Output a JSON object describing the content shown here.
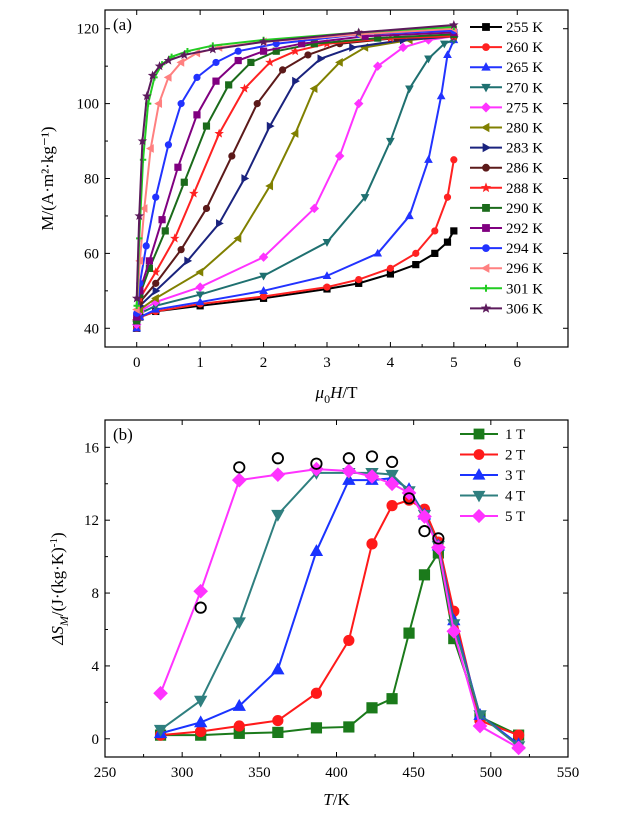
{
  "chart_data": [
    {
      "type": "line",
      "panel_label": "(a)",
      "xlabel": "μ0H/T",
      "xlabel_parts": {
        "pre": "μ",
        "sub": "0",
        "post": "H/T"
      },
      "ylabel": "M/(A·m²·kg⁻¹)",
      "xlim": [
        -0.5,
        6.8
      ],
      "ylim": [
        35,
        125
      ],
      "xticks": [
        0,
        1,
        2,
        3,
        4,
        5,
        6
      ],
      "yticks": [
        40,
        60,
        80,
        100,
        120
      ],
      "grid": false,
      "legend_position": "right",
      "series": [
        {
          "name": "255 K",
          "color": "#000000",
          "marker": "square",
          "x": [
            0,
            0.05,
            0.3,
            1,
            2,
            3,
            3.5,
            4,
            4.4,
            4.7,
            4.9,
            5.0
          ],
          "y": [
            40,
            43,
            44.5,
            46,
            48,
            50.5,
            52,
            54.5,
            57,
            60,
            63,
            66
          ]
        },
        {
          "name": "260 K",
          "color": "#ff2222",
          "marker": "circle",
          "x": [
            0,
            0.05,
            0.3,
            1,
            2,
            3,
            3.5,
            4,
            4.4,
            4.7,
            4.9,
            5.0
          ],
          "y": [
            40,
            43,
            44.5,
            46.5,
            48.5,
            51,
            53,
            56,
            60,
            66,
            75,
            85
          ]
        },
        {
          "name": "265 K",
          "color": "#2233ff",
          "marker": "triangle-up",
          "x": [
            0,
            0.05,
            0.3,
            1,
            2,
            3,
            3.8,
            4.3,
            4.6,
            4.8,
            4.9,
            5.0
          ],
          "y": [
            40,
            43,
            45,
            47,
            50,
            54,
            60,
            70,
            85,
            102,
            113,
            117
          ]
        },
        {
          "name": "270 K",
          "color": "#1f7070",
          "marker": "triangle-down",
          "x": [
            0,
            0.05,
            0.3,
            1,
            2,
            3,
            3.6,
            4,
            4.3,
            4.6,
            4.85,
            5.0
          ],
          "y": [
            41,
            44,
            46,
            49,
            54,
            63,
            75,
            90,
            104,
            112,
            116,
            117
          ]
        },
        {
          "name": "275 K",
          "color": "#ff33ff",
          "marker": "diamond",
          "x": [
            0,
            0.05,
            0.3,
            1,
            2,
            2.8,
            3.2,
            3.5,
            3.8,
            4.2,
            4.6,
            5.0
          ],
          "y": [
            41,
            44.5,
            47,
            51,
            59,
            72,
            86,
            100,
            110,
            115,
            117,
            118
          ]
        },
        {
          "name": "280 K",
          "color": "#808000",
          "marker": "triangle-left",
          "x": [
            0,
            0.05,
            0.3,
            1,
            1.6,
            2.1,
            2.5,
            2.8,
            3.2,
            3.6,
            4.3,
            5.0
          ],
          "y": [
            42,
            45,
            48,
            55,
            64,
            78,
            92,
            104,
            111,
            115,
            117,
            118
          ]
        },
        {
          "name": "283 K",
          "color": "#1a237e",
          "marker": "triangle-right",
          "x": [
            0,
            0.05,
            0.3,
            0.8,
            1.3,
            1.7,
            2.1,
            2.5,
            2.9,
            3.4,
            4.2,
            5.0
          ],
          "y": [
            42,
            46,
            50,
            58,
            68,
            80,
            94,
            106,
            112,
            115,
            117,
            118
          ]
        },
        {
          "name": "286 K",
          "color": "#5c1a1a",
          "marker": "hexagon",
          "x": [
            0,
            0.05,
            0.3,
            0.7,
            1.1,
            1.5,
            1.9,
            2.3,
            2.7,
            3.2,
            4.1,
            5.0
          ],
          "y": [
            42,
            47,
            52,
            61,
            72,
            86,
            100,
            109,
            113,
            116,
            117.5,
            118
          ]
        },
        {
          "name": "288 K",
          "color": "#ff2222",
          "marker": "star",
          "x": [
            0,
            0.05,
            0.3,
            0.6,
            0.9,
            1.3,
            1.7,
            2.1,
            2.5,
            3,
            4,
            5.0
          ],
          "y": [
            42,
            48,
            55,
            64,
            76,
            92,
            104,
            111,
            114,
            116,
            117.5,
            118
          ]
        },
        {
          "name": "290 K",
          "color": "#1b6b1b",
          "marker": "square",
          "x": [
            0,
            0.05,
            0.2,
            0.45,
            0.75,
            1.1,
            1.45,
            1.8,
            2.2,
            2.8,
            3.8,
            5.0
          ],
          "y": [
            42,
            49,
            56,
            66,
            79,
            94,
            105,
            111,
            114,
            116,
            117.5,
            118.5
          ]
        },
        {
          "name": "292 K",
          "color": "#800080",
          "marker": "square",
          "x": [
            0,
            0.05,
            0.2,
            0.4,
            0.65,
            0.95,
            1.25,
            1.6,
            2,
            2.6,
            3.6,
            5.0
          ],
          "y": [
            43,
            50,
            58,
            69,
            83,
            97,
            106,
            111.5,
            114,
            116,
            118,
            119
          ]
        },
        {
          "name": "294 K",
          "color": "#2233ff",
          "marker": "dot",
          "x": [
            0,
            0.05,
            0.15,
            0.3,
            0.5,
            0.7,
            0.95,
            1.25,
            1.6,
            2.2,
            3.5,
            5.0
          ],
          "y": [
            44,
            52,
            62,
            75,
            89,
            100,
            107,
            111,
            114,
            116,
            118.5,
            119.5
          ]
        },
        {
          "name": "296 K",
          "color": "#ff8080",
          "marker": "triangle-left",
          "x": [
            0,
            0.05,
            0.12,
            0.22,
            0.35,
            0.5,
            0.7,
            0.95,
            1.3,
            2,
            3.5,
            5.0
          ],
          "y": [
            45,
            58,
            72,
            88,
            100,
            107,
            111,
            113.5,
            115,
            116.5,
            118.5,
            120
          ]
        },
        {
          "name": "301 K",
          "color": "#22cc22",
          "marker": "plus",
          "x": [
            0,
            0.04,
            0.1,
            0.18,
            0.28,
            0.4,
            0.55,
            0.8,
            1.2,
            2,
            3.5,
            5.0
          ],
          "y": [
            46,
            64,
            85,
            100,
            107,
            110.5,
            112.5,
            114,
            115.5,
            117,
            119,
            120.5
          ]
        },
        {
          "name": "306 K",
          "color": "#5c1a5c",
          "marker": "star",
          "x": [
            0,
            0.04,
            0.09,
            0.16,
            0.25,
            0.36,
            0.5,
            0.75,
            1.2,
            2,
            3.5,
            5.0
          ],
          "y": [
            48,
            70,
            90,
            102,
            107.5,
            110,
            111.5,
            113,
            114.5,
            116.5,
            119,
            121
          ]
        }
      ]
    },
    {
      "type": "line",
      "panel_label": "(b)",
      "xlabel": "T/K",
      "ylabel": "ΔSM/(J·(kg·K)⁻¹)",
      "ylabel_parts": {
        "pre": "ΔS",
        "sub": "M",
        "post": "/(J·(kg·K)",
        "sup": "-1",
        "end": ")"
      },
      "xlim": [
        250,
        550
      ],
      "ylim": [
        -1,
        17.5
      ],
      "xticks": [
        250,
        300,
        350,
        400,
        450,
        500,
        550
      ],
      "yticks": [
        0,
        4,
        8,
        12,
        16
      ],
      "grid": false,
      "legend_position": "top-right",
      "series": [
        {
          "name": "1 T",
          "color": "#1b7a1b",
          "marker": "square",
          "x": [
            286,
            312,
            337,
            362,
            387,
            408,
            423,
            436,
            447,
            457,
            466,
            476,
            493,
            518
          ],
          "y": [
            0.2,
            0.2,
            0.3,
            0.35,
            0.6,
            0.65,
            1.7,
            2.2,
            5.8,
            9.0,
            10.2,
            5.5,
            1.2,
            0.2
          ]
        },
        {
          "name": "2 T",
          "color": "#ff1a1a",
          "marker": "circle",
          "x": [
            286,
            312,
            337,
            362,
            387,
            408,
            423,
            436,
            447,
            457,
            466,
            476,
            493,
            518
          ],
          "y": [
            0.2,
            0.4,
            0.7,
            1.0,
            2.5,
            5.4,
            10.7,
            12.8,
            13.1,
            12.6,
            10.8,
            7.0,
            1.0,
            0.2
          ]
        },
        {
          "name": "3 T",
          "color": "#1a33ff",
          "marker": "triangle-up",
          "x": [
            286,
            312,
            337,
            362,
            387,
            408,
            423,
            436,
            447,
            457,
            466,
            476,
            493,
            518
          ],
          "y": [
            0.3,
            0.9,
            1.8,
            3.8,
            10.3,
            14.2,
            14.2,
            14.3,
            13.7,
            12.3,
            10.6,
            6.5,
            1.3,
            -0.3
          ]
        },
        {
          "name": "4 T",
          "color": "#2f7f7f",
          "marker": "triangle-down",
          "x": [
            286,
            312,
            337,
            362,
            387,
            408,
            423,
            436,
            447,
            457,
            466,
            476,
            493,
            518
          ],
          "y": [
            0.5,
            2.1,
            6.4,
            12.3,
            14.6,
            14.6,
            14.6,
            14.5,
            13.6,
            12.3,
            10.6,
            6.3,
            1.3,
            -0.4
          ]
        },
        {
          "name": "5 T",
          "color": "#ff33ff",
          "marker": "diamond",
          "x": [
            286,
            312,
            337,
            362,
            387,
            408,
            423,
            436,
            447,
            457,
            466,
            476,
            493,
            518
          ],
          "y": [
            2.5,
            8.1,
            14.2,
            14.5,
            14.8,
            14.7,
            14.4,
            14.0,
            13.5,
            12.2,
            10.5,
            5.9,
            0.7,
            -0.5
          ]
        },
        {
          "name": "",
          "color": "#000000",
          "marker": "open-circle",
          "line": false,
          "x": [
            312,
            337,
            362,
            387,
            408,
            423,
            436,
            447,
            457,
            466
          ],
          "y": [
            7.2,
            14.9,
            15.4,
            15.1,
            15.4,
            15.5,
            15.2,
            13.2,
            11.4,
            11.0
          ]
        }
      ]
    }
  ]
}
